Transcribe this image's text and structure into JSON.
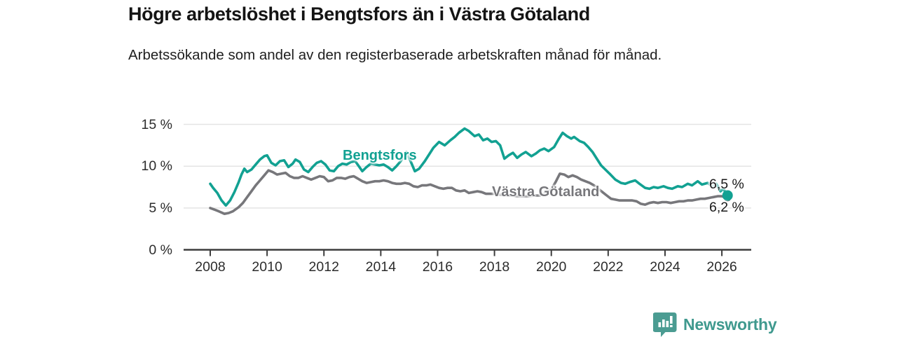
{
  "header": {
    "title": "Högre arbetslöshet i Bengtsfors än i Västra Götaland",
    "subtitle": "Arbetssökande som andel av den registerbaserade arbetskraften månad för månad."
  },
  "chart_data": {
    "type": "line",
    "title": "Högre arbetslöshet i Bengtsfors än i Västra Götaland",
    "subtitle": "Arbetssökande som andel av den registerbaserade arbetskraften månad för månad.",
    "unit": "%",
    "xlim": [
      2007.05,
      2027.05
    ],
    "ylim": [
      0,
      15.1
    ],
    "grid": "horizontal",
    "legend_position": "inline-labels",
    "x_tick_values": [
      2008,
      2010,
      2012,
      2014,
      2016,
      2018,
      2020,
      2022,
      2024,
      2026
    ],
    "x_tick_labels": [
      "2008",
      "2010",
      "2012",
      "2014",
      "2016",
      "2018",
      "2020",
      "2022",
      "2024",
      "2026"
    ],
    "y_tick_values": [
      0,
      5,
      10,
      15
    ],
    "y_tick_labels": [
      "0 %",
      "5 %",
      "10 %",
      "15 %"
    ],
    "series": [
      {
        "name": "Västra Götaland",
        "label": "Västra Götaland",
        "color": "#77777b",
        "end_label": "6,2 %",
        "end_value": 6.2,
        "points": [
          [
            2008.0,
            5.0
          ],
          [
            2008.15,
            4.8
          ],
          [
            2008.3,
            4.6
          ],
          [
            2008.5,
            4.3
          ],
          [
            2008.65,
            4.4
          ],
          [
            2008.8,
            4.6
          ],
          [
            2009.0,
            5.1
          ],
          [
            2009.15,
            5.6
          ],
          [
            2009.3,
            6.3
          ],
          [
            2009.45,
            7.0
          ],
          [
            2009.6,
            7.7
          ],
          [
            2009.75,
            8.3
          ],
          [
            2009.9,
            8.9
          ],
          [
            2010.05,
            9.5
          ],
          [
            2010.2,
            9.3
          ],
          [
            2010.35,
            9.0
          ],
          [
            2010.5,
            9.1
          ],
          [
            2010.65,
            9.2
          ],
          [
            2010.8,
            8.8
          ],
          [
            2010.95,
            8.6
          ],
          [
            2011.1,
            8.6
          ],
          [
            2011.25,
            8.8
          ],
          [
            2011.4,
            8.6
          ],
          [
            2011.55,
            8.4
          ],
          [
            2011.7,
            8.6
          ],
          [
            2011.85,
            8.8
          ],
          [
            2012.0,
            8.7
          ],
          [
            2012.15,
            8.2
          ],
          [
            2012.3,
            8.3
          ],
          [
            2012.45,
            8.6
          ],
          [
            2012.6,
            8.6
          ],
          [
            2012.75,
            8.5
          ],
          [
            2012.9,
            8.7
          ],
          [
            2013.05,
            8.8
          ],
          [
            2013.2,
            8.5
          ],
          [
            2013.35,
            8.2
          ],
          [
            2013.5,
            8.0
          ],
          [
            2013.65,
            8.1
          ],
          [
            2013.8,
            8.2
          ],
          [
            2013.95,
            8.2
          ],
          [
            2014.1,
            8.3
          ],
          [
            2014.25,
            8.2
          ],
          [
            2014.4,
            8.0
          ],
          [
            2014.55,
            7.9
          ],
          [
            2014.7,
            7.9
          ],
          [
            2014.85,
            8.0
          ],
          [
            2015.0,
            7.9
          ],
          [
            2015.15,
            7.6
          ],
          [
            2015.3,
            7.5
          ],
          [
            2015.45,
            7.7
          ],
          [
            2015.6,
            7.7
          ],
          [
            2015.75,
            7.8
          ],
          [
            2015.9,
            7.6
          ],
          [
            2016.05,
            7.4
          ],
          [
            2016.2,
            7.3
          ],
          [
            2016.35,
            7.4
          ],
          [
            2016.5,
            7.4
          ],
          [
            2016.65,
            7.1
          ],
          [
            2016.8,
            7.0
          ],
          [
            2016.95,
            7.1
          ],
          [
            2017.1,
            6.8
          ],
          [
            2017.25,
            6.9
          ],
          [
            2017.4,
            7.0
          ],
          [
            2017.55,
            6.9
          ],
          [
            2017.7,
            6.7
          ],
          [
            2017.85,
            6.7
          ],
          [
            2018.0,
            6.7
          ],
          [
            2018.2,
            6.6
          ],
          [
            2018.4,
            6.5
          ],
          [
            2018.6,
            6.5
          ],
          [
            2018.8,
            6.4
          ],
          [
            2019.0,
            6.4
          ],
          [
            2019.2,
            6.4
          ],
          [
            2019.4,
            6.5
          ],
          [
            2019.6,
            6.5
          ],
          [
            2019.8,
            6.8
          ],
          [
            2020.0,
            7.2
          ],
          [
            2020.15,
            8.1
          ],
          [
            2020.3,
            9.1
          ],
          [
            2020.45,
            9.0
          ],
          [
            2020.6,
            8.7
          ],
          [
            2020.75,
            8.9
          ],
          [
            2020.9,
            8.7
          ],
          [
            2021.05,
            8.4
          ],
          [
            2021.2,
            8.2
          ],
          [
            2021.35,
            8.0
          ],
          [
            2021.5,
            7.7
          ],
          [
            2021.65,
            7.3
          ],
          [
            2021.8,
            6.9
          ],
          [
            2021.95,
            6.5
          ],
          [
            2022.1,
            6.1
          ],
          [
            2022.25,
            6.0
          ],
          [
            2022.4,
            5.9
          ],
          [
            2022.55,
            5.9
          ],
          [
            2022.7,
            5.9
          ],
          [
            2022.85,
            5.9
          ],
          [
            2023.0,
            5.8
          ],
          [
            2023.15,
            5.5
          ],
          [
            2023.3,
            5.4
          ],
          [
            2023.45,
            5.6
          ],
          [
            2023.6,
            5.7
          ],
          [
            2023.75,
            5.6
          ],
          [
            2023.9,
            5.7
          ],
          [
            2024.05,
            5.7
          ],
          [
            2024.2,
            5.6
          ],
          [
            2024.35,
            5.7
          ],
          [
            2024.5,
            5.8
          ],
          [
            2024.65,
            5.8
          ],
          [
            2024.8,
            5.9
          ],
          [
            2024.95,
            5.9
          ],
          [
            2025.1,
            6.0
          ],
          [
            2025.25,
            6.1
          ],
          [
            2025.4,
            6.1
          ],
          [
            2025.55,
            6.2
          ],
          [
            2025.7,
            6.3
          ],
          [
            2025.85,
            6.4
          ],
          [
            2026.0,
            6.4
          ],
          [
            2026.1,
            6.3
          ],
          [
            2026.2,
            6.2
          ]
        ]
      },
      {
        "name": "Bengtsfors",
        "label": "Bengtsfors",
        "color": "#12a192",
        "end_label": "6,5 %",
        "end_value": 6.5,
        "points": [
          [
            2008.0,
            7.9
          ],
          [
            2008.1,
            7.4
          ],
          [
            2008.25,
            6.8
          ],
          [
            2008.4,
            5.9
          ],
          [
            2008.55,
            5.3
          ],
          [
            2008.7,
            5.9
          ],
          [
            2008.85,
            6.9
          ],
          [
            2009.0,
            8.1
          ],
          [
            2009.1,
            9.0
          ],
          [
            2009.2,
            9.7
          ],
          [
            2009.3,
            9.3
          ],
          [
            2009.45,
            9.6
          ],
          [
            2009.6,
            10.2
          ],
          [
            2009.75,
            10.8
          ],
          [
            2009.9,
            11.2
          ],
          [
            2010.0,
            11.3
          ],
          [
            2010.15,
            10.4
          ],
          [
            2010.3,
            10.1
          ],
          [
            2010.45,
            10.6
          ],
          [
            2010.6,
            10.7
          ],
          [
            2010.75,
            9.9
          ],
          [
            2010.9,
            10.3
          ],
          [
            2011.0,
            10.8
          ],
          [
            2011.15,
            10.5
          ],
          [
            2011.3,
            9.6
          ],
          [
            2011.45,
            9.3
          ],
          [
            2011.6,
            9.9
          ],
          [
            2011.75,
            10.4
          ],
          [
            2011.9,
            10.6
          ],
          [
            2012.05,
            10.2
          ],
          [
            2012.2,
            9.5
          ],
          [
            2012.35,
            9.4
          ],
          [
            2012.5,
            10.0
          ],
          [
            2012.65,
            10.3
          ],
          [
            2012.8,
            10.2
          ],
          [
            2012.95,
            10.5
          ],
          [
            2013.1,
            10.6
          ],
          [
            2013.25,
            9.9
          ],
          [
            2013.35,
            9.4
          ],
          [
            2013.5,
            9.9
          ],
          [
            2013.65,
            10.3
          ],
          [
            2013.8,
            10.2
          ],
          [
            2013.95,
            10.1
          ],
          [
            2014.1,
            10.2
          ],
          [
            2014.25,
            9.9
          ],
          [
            2014.4,
            9.5
          ],
          [
            2014.55,
            10.0
          ],
          [
            2014.7,
            10.6
          ],
          [
            2014.9,
            11.7
          ],
          [
            2015.05,
            10.6
          ],
          [
            2015.2,
            9.4
          ],
          [
            2015.35,
            9.7
          ],
          [
            2015.55,
            10.6
          ],
          [
            2015.7,
            11.4
          ],
          [
            2015.85,
            12.2
          ],
          [
            2016.05,
            12.9
          ],
          [
            2016.25,
            12.5
          ],
          [
            2016.45,
            13.1
          ],
          [
            2016.6,
            13.5
          ],
          [
            2016.75,
            14.0
          ],
          [
            2016.95,
            14.5
          ],
          [
            2017.1,
            14.2
          ],
          [
            2017.3,
            13.6
          ],
          [
            2017.45,
            13.8
          ],
          [
            2017.6,
            13.1
          ],
          [
            2017.75,
            13.3
          ],
          [
            2017.9,
            12.9
          ],
          [
            2018.05,
            13.0
          ],
          [
            2018.2,
            12.5
          ],
          [
            2018.35,
            10.9
          ],
          [
            2018.5,
            11.3
          ],
          [
            2018.65,
            11.6
          ],
          [
            2018.8,
            11.0
          ],
          [
            2018.95,
            11.4
          ],
          [
            2019.1,
            11.7
          ],
          [
            2019.3,
            11.2
          ],
          [
            2019.45,
            11.5
          ],
          [
            2019.6,
            11.9
          ],
          [
            2019.75,
            12.1
          ],
          [
            2019.9,
            11.8
          ],
          [
            2020.1,
            12.3
          ],
          [
            2020.25,
            13.2
          ],
          [
            2020.4,
            14.0
          ],
          [
            2020.55,
            13.6
          ],
          [
            2020.7,
            13.3
          ],
          [
            2020.8,
            13.5
          ],
          [
            2021.0,
            13.0
          ],
          [
            2021.15,
            12.8
          ],
          [
            2021.3,
            12.3
          ],
          [
            2021.45,
            11.7
          ],
          [
            2021.6,
            10.9
          ],
          [
            2021.75,
            10.1
          ],
          [
            2021.9,
            9.6
          ],
          [
            2022.05,
            9.1
          ],
          [
            2022.25,
            8.4
          ],
          [
            2022.45,
            8.0
          ],
          [
            2022.6,
            7.9
          ],
          [
            2022.75,
            8.1
          ],
          [
            2022.95,
            8.3
          ],
          [
            2023.1,
            7.9
          ],
          [
            2023.3,
            7.4
          ],
          [
            2023.45,
            7.3
          ],
          [
            2023.6,
            7.5
          ],
          [
            2023.75,
            7.4
          ],
          [
            2023.95,
            7.6
          ],
          [
            2024.1,
            7.4
          ],
          [
            2024.25,
            7.3
          ],
          [
            2024.45,
            7.6
          ],
          [
            2024.6,
            7.5
          ],
          [
            2024.8,
            7.9
          ],
          [
            2024.95,
            7.7
          ],
          [
            2025.15,
            8.2
          ],
          [
            2025.3,
            7.8
          ],
          [
            2025.5,
            8.0
          ],
          [
            2025.65,
            7.6
          ],
          [
            2025.8,
            7.9
          ],
          [
            2025.95,
            7.0
          ],
          [
            2026.05,
            7.3
          ],
          [
            2026.2,
            6.5
          ]
        ]
      }
    ],
    "colors": {
      "bengtsfors": "#12a192",
      "vastra_gotaland": "#77777b",
      "axis": "#3d3d3d",
      "grid": "#e4e4e4"
    }
  },
  "footer": {
    "brand": "Newsworthy",
    "brand_color": "#3f998e"
  }
}
